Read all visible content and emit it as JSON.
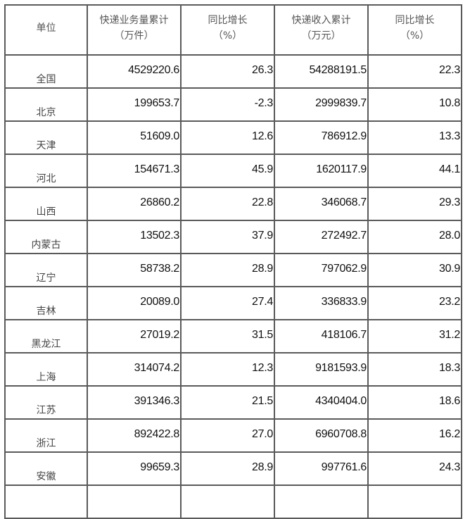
{
  "headers": [
    {
      "line1": "单位",
      "line2": ""
    },
    {
      "line1": "快递业务量累计",
      "line2": "（万件）"
    },
    {
      "line1": "同比增长",
      "line2": "（%）"
    },
    {
      "line1": "快递收入累计",
      "line2": "（万元）"
    },
    {
      "line1": "同比增长",
      "line2": "（%）"
    }
  ],
  "rows": [
    [
      "全国",
      "4529220.6",
      "26.3",
      "54288191.5",
      "22.3"
    ],
    [
      "北京",
      "199653.7",
      "-2.3",
      "2999839.7",
      "10.8"
    ],
    [
      "天津",
      "51609.0",
      "12.6",
      "786912.9",
      "13.3"
    ],
    [
      "河北",
      "154671.3",
      "45.9",
      "1620117.9",
      "44.1"
    ],
    [
      "山西",
      "26860.2",
      "22.8",
      "346068.7",
      "29.3"
    ],
    [
      "内蒙古",
      "13502.3",
      "37.9",
      "272492.7",
      "28.0"
    ],
    [
      "辽宁",
      "58738.2",
      "28.9",
      "797062.9",
      "30.9"
    ],
    [
      "吉林",
      "20089.0",
      "27.4",
      "336833.9",
      "23.2"
    ],
    [
      "黑龙江",
      "27019.2",
      "31.5",
      "418106.7",
      "31.2"
    ],
    [
      "上海",
      "314074.2",
      "12.3",
      "9181593.9",
      "18.3"
    ],
    [
      "江苏",
      "391346.3",
      "21.5",
      "4340404.0",
      "18.6"
    ],
    [
      "浙江",
      "892422.8",
      "27.0",
      "6960708.8",
      "16.2"
    ],
    [
      "安徽",
      "99659.3",
      "28.9",
      "997761.6",
      "24.3"
    ]
  ]
}
